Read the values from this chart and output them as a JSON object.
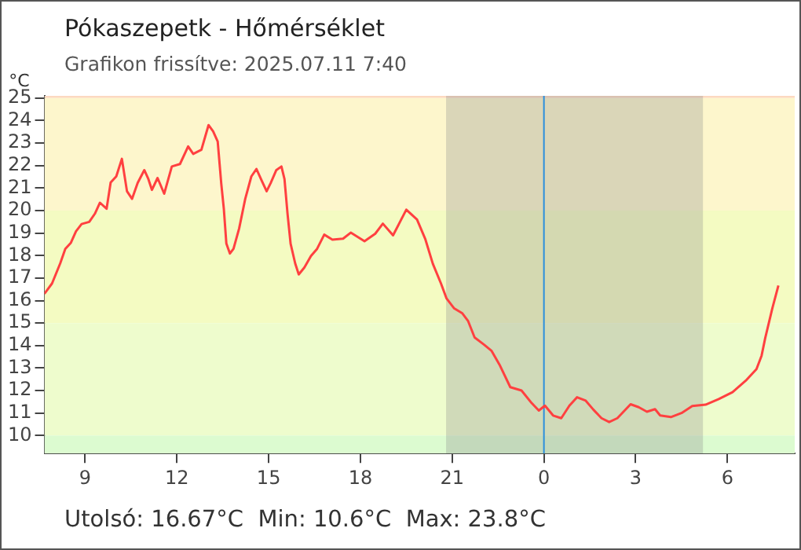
{
  "chart_data": {
    "type": "line",
    "title": "Pókaszepetk - Hőmérséklet",
    "subtitle": "Grafikon frissítve: 2025.07.11 7:40",
    "ylabel": "°C",
    "annotations": [
      "Utolsó: 16.67°C  Min: 10.6°C  Max: 23.8°C"
    ],
    "x": [
      "2025-07-10T07:40",
      "2025-07-10T07:55",
      "2025-07-10T08:11",
      "2025-07-10T08:21",
      "2025-07-10T08:32",
      "2025-07-10T08:42",
      "2025-07-10T08:53",
      "2025-07-10T09:08",
      "2025-07-10T09:19",
      "2025-07-10T09:29",
      "2025-07-10T09:42",
      "2025-07-10T09:50",
      "2025-07-10T10:01",
      "2025-07-10T10:12",
      "2025-07-10T10:22",
      "2025-07-10T10:32",
      "2025-07-10T10:43",
      "2025-07-10T10:56",
      "2025-07-10T11:04",
      "2025-07-10T11:11",
      "2025-07-10T11:22",
      "2025-07-10T11:35",
      "2025-07-10T11:50",
      "2025-07-10T12:06",
      "2025-07-10T12:22",
      "2025-07-10T12:32",
      "2025-07-10T12:48",
      "2025-07-10T13:02",
      "2025-07-10T13:11",
      "2025-07-10T13:20",
      "2025-07-10T13:27",
      "2025-07-10T13:32",
      "2025-07-10T13:37",
      "2025-07-10T13:44",
      "2025-07-10T13:51",
      "2025-07-10T14:02",
      "2025-07-10T14:14",
      "2025-07-10T14:26",
      "2025-07-10T14:36",
      "2025-07-10T14:47",
      "2025-07-10T14:56",
      "2025-07-10T15:04",
      "2025-07-10T15:15",
      "2025-07-10T15:25",
      "2025-07-10T15:31",
      "2025-07-10T15:37",
      "2025-07-10T15:43",
      "2025-07-10T15:52",
      "2025-07-10T15:59",
      "2025-07-10T16:10",
      "2025-07-10T16:23",
      "2025-07-10T16:35",
      "2025-07-10T16:49",
      "2025-07-10T17:05",
      "2025-07-10T17:26",
      "2025-07-10T17:41",
      "2025-07-10T18:08",
      "2025-07-10T18:29",
      "2025-07-10T18:44",
      "2025-07-10T19:04",
      "2025-07-10T19:30",
      "2025-07-10T19:51",
      "2025-07-10T20:07",
      "2025-07-10T20:22",
      "2025-07-10T20:38",
      "2025-07-10T20:49",
      "2025-07-10T21:04",
      "2025-07-10T21:20",
      "2025-07-10T21:31",
      "2025-07-10T21:44",
      "2025-07-10T22:02",
      "2025-07-10T22:17",
      "2025-07-10T22:34",
      "2025-07-10T22:54",
      "2025-07-10T23:16",
      "2025-07-10T23:36",
      "2025-07-10T23:50",
      "2025-07-11T00:02",
      "2025-07-11T00:18",
      "2025-07-11T00:34",
      "2025-07-11T00:50",
      "2025-07-11T01:05",
      "2025-07-11T01:22",
      "2025-07-11T01:37",
      "2025-07-11T01:53",
      "2025-07-11T02:08",
      "2025-07-11T02:24",
      "2025-07-11T02:50",
      "2025-07-11T03:06",
      "2025-07-11T03:22",
      "2025-07-11T03:38",
      "2025-07-11T03:48",
      "2025-07-11T04:09",
      "2025-07-11T04:30",
      "2025-07-11T04:51",
      "2025-07-11T05:17",
      "2025-07-11T05:43",
      "2025-07-11T06:10",
      "2025-07-11T06:36",
      "2025-07-11T06:57",
      "2025-07-11T07:07",
      "2025-07-11T07:14",
      "2025-07-11T07:28",
      "2025-07-11T07:40"
    ],
    "series": [
      {
        "color": "#ff4040",
        "values": [
          16.3,
          16.76,
          17.65,
          18.3,
          18.57,
          19.08,
          19.4,
          19.5,
          19.86,
          20.35,
          20.08,
          21.25,
          21.52,
          22.3,
          20.86,
          20.52,
          21.23,
          21.8,
          21.4,
          20.92,
          21.45,
          20.75,
          21.96,
          22.07,
          22.85,
          22.52,
          22.7,
          23.8,
          23.52,
          23.07,
          21.19,
          20.08,
          18.53,
          18.09,
          18.3,
          19.2,
          20.52,
          21.52,
          21.85,
          21.3,
          20.86,
          21.23,
          21.8,
          21.96,
          21.4,
          19.86,
          18.53,
          17.65,
          17.16,
          17.47,
          17.98,
          18.3,
          18.93,
          18.71,
          18.75,
          19.02,
          18.64,
          18.97,
          19.42,
          18.9,
          20.04,
          19.6,
          18.75,
          17.64,
          16.76,
          16.09,
          15.65,
          15.43,
          15.1,
          14.36,
          14.05,
          13.77,
          13.1,
          12.15,
          12.0,
          11.44,
          11.11,
          11.33,
          10.89,
          10.77,
          11.33,
          11.7,
          11.55,
          11.15,
          10.77,
          10.6,
          10.77,
          11.39,
          11.26,
          11.06,
          11.17,
          10.89,
          10.82,
          11.0,
          11.31,
          11.37,
          11.62,
          11.93,
          12.44,
          12.95,
          13.55,
          14.32,
          15.65,
          16.67
        ]
      }
    ],
    "xlim": [
      "2025-07-10T07:40",
      "2025-07-11T08:12"
    ],
    "ylim": [
      9.2,
      25.1
    ],
    "xticks": [
      {
        "value": "2025-07-10T09:00",
        "label": "9"
      },
      {
        "value": "2025-07-10T12:00",
        "label": "12"
      },
      {
        "value": "2025-07-10T15:00",
        "label": "15"
      },
      {
        "value": "2025-07-10T18:00",
        "label": "18"
      },
      {
        "value": "2025-07-10T21:00",
        "label": "21"
      },
      {
        "value": "2025-07-11T00:00",
        "label": "0"
      },
      {
        "value": "2025-07-11T03:00",
        "label": "3"
      },
      {
        "value": "2025-07-11T06:00",
        "label": "6"
      }
    ],
    "yticks": [
      10,
      11,
      12,
      13,
      14,
      15,
      16,
      17,
      18,
      19,
      20,
      21,
      22,
      23,
      24,
      25
    ],
    "bands": [
      {
        "axis": "y",
        "from": 25,
        "to": 25.1,
        "color": "#fcd9c0"
      },
      {
        "axis": "y",
        "from": 20,
        "to": 25,
        "color": "#fdf6cc"
      },
      {
        "axis": "y",
        "from": 15,
        "to": 20,
        "color": "#f4fbc2"
      },
      {
        "axis": "y",
        "from": 10,
        "to": 15,
        "color": "#eefccd"
      },
      {
        "axis": "y",
        "from": 9.2,
        "to": 10,
        "color": "#dcfbd0"
      },
      {
        "axis": "x",
        "from": "2025-07-10T20:48",
        "to": "2025-07-11T05:12",
        "color": "#8a8a8a"
      }
    ],
    "ref_lines": [
      {
        "axis": "x",
        "value": "2025-07-11T00:00",
        "color": "#2a8fdc"
      }
    ],
    "grid": false,
    "legend": false,
    "marker": "none",
    "line_style": "solid"
  }
}
